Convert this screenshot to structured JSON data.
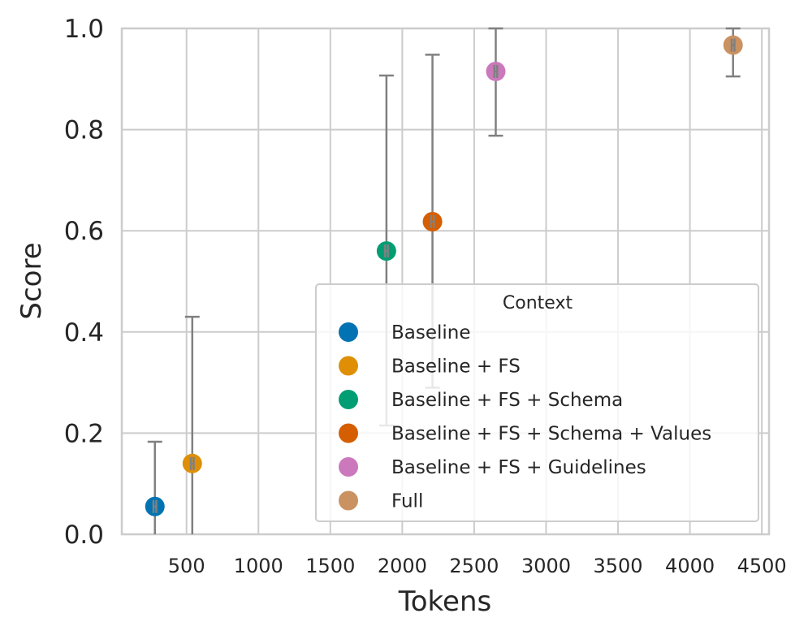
{
  "chart_data": {
    "type": "scatter",
    "title": "",
    "xlabel": "Tokens",
    "ylabel": "Score",
    "xlim": [
      50,
      4550
    ],
    "ylim": [
      0,
      1.0
    ],
    "xticks": [
      {
        "value": 500,
        "label": "500"
      },
      {
        "value": 1000,
        "label": "1000"
      },
      {
        "value": 1500,
        "label": "1500"
      },
      {
        "value": 2000,
        "label": "2000"
      },
      {
        "value": 2500,
        "label": "2500"
      },
      {
        "value": 3000,
        "label": "3000"
      },
      {
        "value": 3500,
        "label": "3500"
      },
      {
        "value": 4000,
        "label": "4000"
      },
      {
        "value": 4500,
        "label": "4500"
      }
    ],
    "yticks": [
      {
        "value": 0.0,
        "label": "0.0"
      },
      {
        "value": 0.2,
        "label": "0.2"
      },
      {
        "value": 0.4,
        "label": "0.4"
      },
      {
        "value": 0.6,
        "label": "0.6"
      },
      {
        "value": 0.8,
        "label": "0.8"
      },
      {
        "value": 1.0,
        "label": "1.0"
      }
    ],
    "grid": true,
    "legend": {
      "title": "Context",
      "position": "lower-right"
    },
    "series": [
      {
        "name": "Baseline",
        "color": "#0173b2",
        "x": 280,
        "y": 0.055,
        "y_err_low": 0.0,
        "y_err_high": 0.183,
        "x_err_low": 270,
        "x_err_high": 290
      },
      {
        "name": "Baseline + FS",
        "color": "#de8f05",
        "x": 540,
        "y": 0.14,
        "y_err_low": 0.0,
        "y_err_high": 0.43,
        "x_err_low": 530,
        "x_err_high": 550
      },
      {
        "name": "Baseline + FS + Schema",
        "color": "#029e73",
        "x": 1890,
        "y": 0.56,
        "y_err_low": 0.215,
        "y_err_high": 0.907,
        "x_err_low": 1880,
        "x_err_high": 1900
      },
      {
        "name": "Baseline + FS + Schema + Values",
        "color": "#d55e00",
        "x": 2210,
        "y": 0.618,
        "y_err_low": 0.29,
        "y_err_high": 0.948,
        "x_err_low": 2200,
        "x_err_high": 2220
      },
      {
        "name": "Baseline + FS + Guidelines",
        "color": "#cc78bc",
        "x": 2650,
        "y": 0.915,
        "y_err_low": 0.788,
        "y_err_high": 1.0,
        "x_err_low": 2640,
        "x_err_high": 2660
      },
      {
        "name": "Full",
        "color": "#ca9161",
        "x": 4300,
        "y": 0.967,
        "y_err_low": 0.905,
        "y_err_high": 1.0,
        "x_err_low": 4290,
        "x_err_high": 4310
      }
    ],
    "error_bar_color": "#808080"
  }
}
